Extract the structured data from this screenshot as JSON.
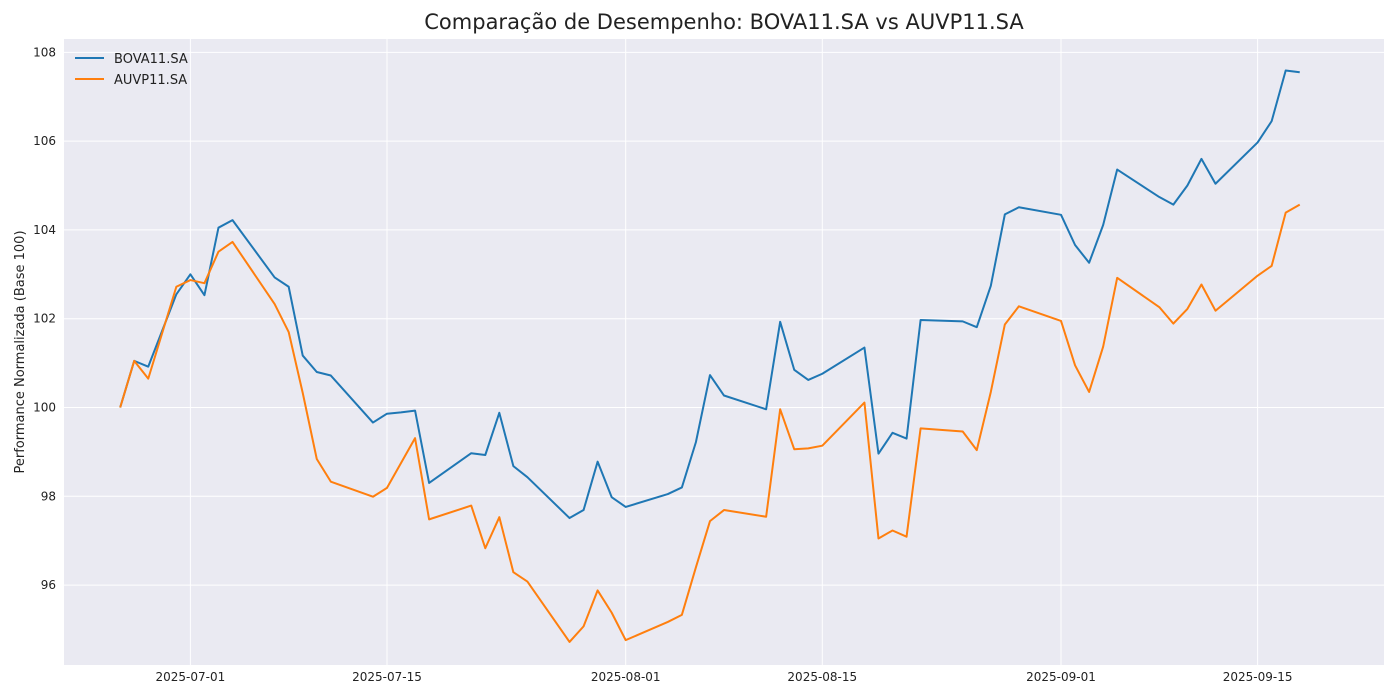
{
  "chart_data": {
    "type": "line",
    "title": "Comparação de Desempenho: BOVA11.SA vs AUVP11.SA",
    "xlabel": "",
    "ylabel": "Performance Normalizada (Base 100)",
    "x_tick_labels": [
      "2025-07-01",
      "2025-07-15",
      "2025-08-01",
      "2025-08-15",
      "2025-09-01",
      "2025-09-15"
    ],
    "y_ticks": [
      96,
      98,
      100,
      102,
      104,
      106,
      108
    ],
    "xlim": [
      "2025-06-22",
      "2025-09-24"
    ],
    "ylim": [
      94.2,
      108.3
    ],
    "grid": true,
    "legend_position": "top-left",
    "x": [
      "2025-06-26",
      "2025-06-27",
      "2025-06-28",
      "2025-06-30",
      "2025-07-01",
      "2025-07-02",
      "2025-07-03",
      "2025-07-04",
      "2025-07-07",
      "2025-07-08",
      "2025-07-09",
      "2025-07-10",
      "2025-07-11",
      "2025-07-14",
      "2025-07-15",
      "2025-07-16",
      "2025-07-17",
      "2025-07-18",
      "2025-07-21",
      "2025-07-22",
      "2025-07-23",
      "2025-07-24",
      "2025-07-25",
      "2025-07-28",
      "2025-07-29",
      "2025-07-30",
      "2025-07-31",
      "2025-08-01",
      "2025-08-04",
      "2025-08-05",
      "2025-08-06",
      "2025-08-07",
      "2025-08-08",
      "2025-08-11",
      "2025-08-12",
      "2025-08-13",
      "2025-08-14",
      "2025-08-15",
      "2025-08-18",
      "2025-08-19",
      "2025-08-20",
      "2025-08-21",
      "2025-08-22",
      "2025-08-25",
      "2025-08-26",
      "2025-08-27",
      "2025-08-28",
      "2025-08-29",
      "2025-09-01",
      "2025-09-02",
      "2025-09-03",
      "2025-09-04",
      "2025-09-05",
      "2025-09-08",
      "2025-09-09",
      "2025-09-10",
      "2025-09-11",
      "2025-09-12",
      "2025-09-15",
      "2025-09-16",
      "2025-09-17",
      "2025-09-18"
    ],
    "series": [
      {
        "name": "BOVA11.SA",
        "color": "#1f77b4",
        "values": [
          100.0,
          101.05,
          100.92,
          102.55,
          103.0,
          102.53,
          104.05,
          104.22,
          102.93,
          102.72,
          101.17,
          100.8,
          100.72,
          99.66,
          99.86,
          99.89,
          99.93,
          98.3,
          98.97,
          98.93,
          99.88,
          98.68,
          98.43,
          97.51,
          97.69,
          98.78,
          97.98,
          97.76,
          98.05,
          98.2,
          99.22,
          100.73,
          100.27,
          99.96,
          101.93,
          100.85,
          100.62,
          100.76,
          101.35,
          98.96,
          99.43,
          99.3,
          101.97,
          101.94,
          101.81,
          102.74,
          104.35,
          104.51,
          104.34,
          103.66,
          103.26,
          104.11,
          105.36,
          104.74,
          104.57,
          105.0,
          105.6,
          105.04,
          105.97,
          106.45,
          107.59,
          107.55
        ]
      },
      {
        "name": "AUVP11.SA",
        "color": "#ff7f0e",
        "values": [
          100.0,
          101.05,
          100.65,
          102.72,
          102.87,
          102.8,
          103.51,
          103.73,
          102.33,
          101.7,
          100.33,
          98.84,
          98.33,
          97.99,
          98.19,
          98.75,
          99.31,
          97.48,
          97.79,
          96.83,
          97.53,
          96.29,
          96.08,
          94.72,
          95.07,
          95.88,
          95.38,
          94.76,
          95.17,
          95.33,
          96.4,
          97.44,
          97.69,
          97.54,
          99.96,
          99.06,
          99.08,
          99.14,
          100.11,
          97.05,
          97.23,
          97.09,
          99.53,
          99.46,
          99.04,
          100.35,
          101.87,
          102.28,
          101.95,
          100.95,
          100.35,
          101.37,
          102.92,
          102.26,
          101.89,
          102.22,
          102.77,
          102.18,
          102.97,
          103.19,
          104.39,
          104.57
        ]
      }
    ]
  }
}
